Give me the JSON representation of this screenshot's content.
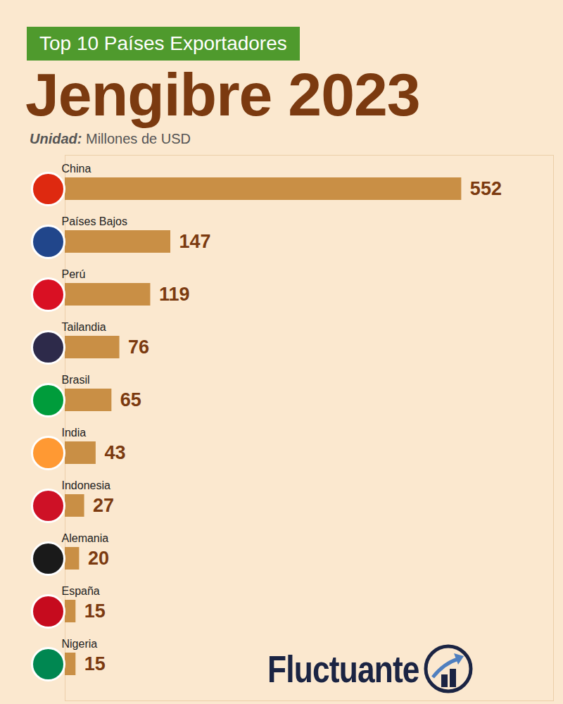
{
  "chart_data": {
    "type": "bar",
    "orientation": "horizontal",
    "subtitle": "Top 10 Países Exportadores",
    "title": "Jengibre 2023",
    "unit": "Unidad: Millones de USD",
    "annotations": [
      "Fluctuante"
    ],
    "categories": [
      "China",
      "Países Bajos",
      "Perú",
      "Tailandia",
      "Brasil",
      "India",
      "Indonesia",
      "Alemania",
      "España",
      "Nigeria"
    ],
    "values": [
      552,
      147,
      119,
      76,
      65,
      43,
      27,
      20,
      15,
      15
    ],
    "color": "#c98f45",
    "xlim": [
      0,
      680
    ],
    "xticks": [],
    "grid": false,
    "data_labels": true,
    "tick_labels": false
  }
}
